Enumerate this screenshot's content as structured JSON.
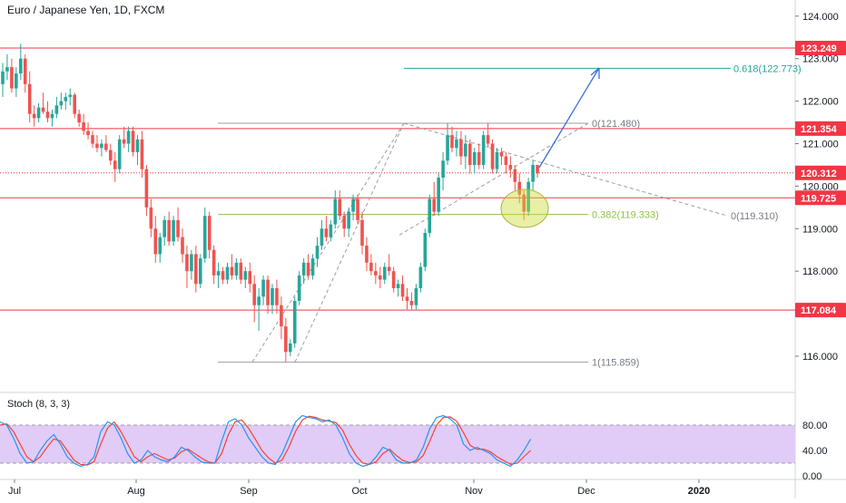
{
  "title": "Euro / Japanese Yen, 1D, FXCM",
  "stoch_label": "Stoch (8, 3, 3)",
  "colors": {
    "up": "#26a69a",
    "down": "#ef5350",
    "level_line": "#f23645",
    "fib_teal": "#26a69a",
    "fib_green": "#8bc34a",
    "arrow": "#3a6fd8",
    "stoch_k": "#2196f3",
    "stoch_d": "#f44336",
    "stoch_band": "#e1cbf7"
  },
  "price_axis": {
    "ticks": [
      "124.000",
      "123.000",
      "122.000",
      "121.000",
      "120.000",
      "119.000",
      "118.000",
      "117.000",
      "116.000"
    ]
  },
  "time_axis": {
    "ticks": [
      "Jul",
      "Aug",
      "Sep",
      "Oct",
      "Nov",
      "Dec",
      "2020"
    ]
  },
  "stoch_axis": {
    "ticks": [
      "80.00",
      "40.00",
      "0.00"
    ]
  },
  "price_tags": [
    {
      "label": "123.249",
      "price": 123.249,
      "style": "level"
    },
    {
      "label": "121.354",
      "price": 121.354,
      "style": "level"
    },
    {
      "label": "120.312",
      "price": 120.312,
      "style": "current"
    },
    {
      "label": "119.725",
      "price": 119.725,
      "style": "level"
    },
    {
      "label": "117.084",
      "price": 117.084,
      "style": "level"
    }
  ],
  "fib_labels": {
    "f0": "0(121.480)",
    "f1": "1(115.859)",
    "f0382": "0.382(119.333)",
    "f0618": "0.618(122.773)",
    "f0b": "0(119.310)"
  },
  "chart_data": {
    "type": "candlestick",
    "title": "Euro / Japanese Yen, 1D, FXCM",
    "price_range": [
      115.5,
      124.2
    ],
    "candles_ohlc": [
      [
        122.4,
        122.9,
        122.1,
        122.7
      ],
      [
        122.7,
        123.1,
        122.5,
        122.8
      ],
      [
        122.8,
        123.0,
        122.2,
        122.3
      ],
      [
        122.3,
        122.8,
        122.1,
        122.65
      ],
      [
        122.65,
        123.35,
        122.5,
        123.0
      ],
      [
        123.0,
        123.1,
        122.2,
        122.4
      ],
      [
        122.4,
        122.7,
        121.5,
        121.7
      ],
      [
        121.7,
        121.9,
        121.4,
        121.6
      ],
      [
        121.6,
        121.95,
        121.5,
        121.85
      ],
      [
        121.85,
        122.2,
        121.7,
        121.75
      ],
      [
        121.75,
        122.0,
        121.5,
        121.6
      ],
      [
        121.6,
        121.8,
        121.4,
        121.7
      ],
      [
        121.7,
        122.1,
        121.6,
        121.9
      ],
      [
        121.9,
        122.2,
        121.8,
        122.0
      ],
      [
        122.0,
        122.2,
        121.8,
        122.1
      ],
      [
        122.1,
        122.3,
        121.9,
        122.15
      ],
      [
        122.15,
        122.2,
        121.6,
        121.7
      ],
      [
        121.7,
        121.8,
        121.4,
        121.5
      ],
      [
        121.5,
        121.7,
        121.2,
        121.3
      ],
      [
        121.3,
        121.5,
        121.1,
        121.2
      ],
      [
        121.2,
        121.3,
        120.9,
        121.0
      ],
      [
        121.0,
        121.2,
        120.8,
        120.9
      ],
      [
        120.9,
        121.1,
        120.7,
        121.0
      ],
      [
        121.0,
        121.2,
        120.8,
        120.85
      ],
      [
        120.85,
        121.0,
        120.5,
        120.6
      ],
      [
        120.6,
        120.8,
        120.1,
        120.4
      ],
      [
        120.4,
        121.2,
        120.3,
        121.1
      ],
      [
        121.1,
        121.4,
        120.9,
        121.0
      ],
      [
        121.0,
        121.4,
        120.8,
        121.3
      ],
      [
        121.3,
        121.4,
        120.7,
        120.8
      ],
      [
        120.8,
        121.2,
        120.5,
        121.1
      ],
      [
        121.1,
        121.3,
        120.2,
        120.4
      ],
      [
        120.4,
        120.5,
        119.3,
        119.5
      ],
      [
        119.5,
        119.7,
        118.8,
        119.0
      ],
      [
        119.0,
        119.3,
        118.2,
        118.4
      ],
      [
        118.4,
        118.9,
        118.2,
        118.8
      ],
      [
        118.8,
        119.3,
        118.6,
        119.2
      ],
      [
        119.2,
        119.4,
        118.6,
        118.7
      ],
      [
        118.7,
        119.3,
        118.6,
        119.2
      ],
      [
        119.2,
        119.5,
        118.7,
        118.8
      ],
      [
        118.8,
        119.0,
        118.2,
        118.4
      ],
      [
        118.4,
        118.6,
        117.6,
        118.0
      ],
      [
        118.0,
        118.5,
        117.8,
        118.4
      ],
      [
        118.4,
        118.6,
        117.5,
        117.7
      ],
      [
        117.7,
        118.4,
        117.6,
        118.3
      ],
      [
        118.3,
        119.5,
        118.2,
        119.3
      ],
      [
        119.3,
        119.4,
        118.3,
        118.5
      ],
      [
        118.5,
        118.6,
        117.7,
        117.9
      ],
      [
        117.9,
        118.2,
        117.6,
        118.0
      ],
      [
        118.0,
        118.1,
        117.7,
        117.8
      ],
      [
        117.8,
        118.2,
        117.7,
        118.1
      ],
      [
        118.1,
        118.4,
        117.8,
        117.9
      ],
      [
        117.9,
        118.3,
        117.8,
        118.2
      ],
      [
        118.2,
        118.3,
        117.7,
        117.8
      ],
      [
        117.8,
        118.1,
        117.6,
        118.0
      ],
      [
        118.0,
        118.2,
        117.5,
        117.7
      ],
      [
        117.7,
        117.9,
        116.8,
        117.2
      ],
      [
        117.2,
        117.6,
        116.6,
        117.4
      ],
      [
        117.4,
        117.9,
        117.2,
        117.8
      ],
      [
        117.8,
        117.9,
        117.0,
        117.2
      ],
      [
        117.2,
        117.7,
        117.0,
        117.6
      ],
      [
        117.6,
        117.8,
        117.0,
        117.2
      ],
      [
        117.2,
        117.4,
        116.4,
        116.7
      ],
      [
        116.7,
        116.9,
        115.86,
        116.1
      ],
      [
        116.1,
        116.4,
        116.0,
        116.3
      ],
      [
        116.3,
        117.4,
        116.2,
        117.3
      ],
      [
        117.3,
        118.0,
        117.2,
        117.9
      ],
      [
        117.9,
        118.3,
        117.7,
        118.2
      ],
      [
        118.2,
        118.4,
        117.8,
        117.9
      ],
      [
        117.9,
        118.4,
        117.8,
        118.3
      ],
      [
        118.3,
        118.8,
        118.1,
        118.6
      ],
      [
        118.6,
        119.2,
        118.5,
        119.0
      ],
      [
        119.0,
        119.3,
        118.7,
        118.8
      ],
      [
        118.8,
        119.2,
        118.7,
        119.1
      ],
      [
        119.1,
        119.9,
        119.0,
        119.7
      ],
      [
        119.7,
        119.9,
        119.2,
        119.3
      ],
      [
        119.3,
        119.4,
        118.8,
        119.0
      ],
      [
        119.0,
        119.5,
        118.8,
        119.4
      ],
      [
        119.4,
        119.8,
        119.2,
        119.7
      ],
      [
        119.7,
        119.8,
        119.1,
        119.2
      ],
      [
        119.2,
        119.4,
        118.4,
        118.6
      ],
      [
        118.6,
        118.8,
        118.0,
        118.2
      ],
      [
        118.2,
        118.4,
        117.9,
        118.0
      ],
      [
        118.0,
        118.2,
        117.7,
        117.9
      ],
      [
        117.9,
        118.1,
        117.6,
        117.8
      ],
      [
        117.8,
        118.2,
        117.7,
        118.1
      ],
      [
        118.1,
        118.4,
        117.9,
        118.0
      ],
      [
        118.0,
        118.1,
        117.5,
        117.6
      ],
      [
        117.6,
        117.8,
        117.4,
        117.7
      ],
      [
        117.7,
        117.9,
        117.3,
        117.4
      ],
      [
        117.4,
        117.6,
        117.1,
        117.3
      ],
      [
        117.3,
        117.5,
        117.1,
        117.2
      ],
      [
        117.2,
        117.7,
        117.1,
        117.6
      ],
      [
        117.6,
        118.2,
        117.5,
        118.1
      ],
      [
        118.1,
        119.0,
        118.0,
        118.9
      ],
      [
        118.9,
        119.8,
        118.8,
        119.7
      ],
      [
        119.7,
        120.1,
        119.3,
        119.4
      ],
      [
        119.4,
        120.3,
        119.3,
        120.2
      ],
      [
        120.2,
        120.8,
        119.9,
        120.6
      ],
      [
        120.6,
        121.48,
        120.5,
        121.2
      ],
      [
        121.2,
        121.4,
        120.8,
        120.9
      ],
      [
        120.9,
        121.3,
        120.7,
        121.1
      ],
      [
        121.1,
        121.3,
        120.5,
        120.7
      ],
      [
        120.7,
        121.2,
        120.4,
        121.0
      ],
      [
        121.0,
        121.1,
        120.3,
        120.5
      ],
      [
        120.5,
        120.9,
        120.3,
        120.8
      ],
      [
        120.8,
        121.0,
        120.4,
        120.5
      ],
      [
        120.5,
        121.3,
        120.4,
        121.2
      ],
      [
        121.2,
        121.48,
        120.9,
        121.0
      ],
      [
        121.0,
        121.1,
        120.3,
        120.4
      ],
      [
        120.4,
        120.9,
        120.3,
        120.8
      ],
      [
        120.8,
        120.9,
        120.5,
        120.7
      ],
      [
        120.7,
        120.8,
        120.3,
        120.5
      ],
      [
        120.5,
        120.7,
        120.2,
        120.4
      ],
      [
        120.4,
        120.5,
        119.9,
        120.1
      ],
      [
        120.1,
        120.3,
        119.6,
        119.8
      ],
      [
        119.8,
        119.9,
        119.2,
        119.4
      ],
      [
        119.4,
        120.2,
        119.3,
        120.1
      ],
      [
        120.1,
        120.6,
        119.9,
        120.5
      ],
      [
        120.5,
        120.5,
        120.2,
        120.3
      ]
    ],
    "levels": [
      123.249,
      121.354,
      119.725,
      117.084
    ],
    "current_price": 120.312,
    "fib_0": 121.48,
    "fib_1": 115.859,
    "fib_0382": 119.333,
    "fib_0618": 122.773,
    "fib_0_b": 119.31,
    "stoch": {
      "range": [
        0,
        100
      ],
      "upper": 80,
      "lower": 20,
      "k": [
        85,
        80,
        60,
        35,
        20,
        22,
        40,
        55,
        65,
        50,
        30,
        20,
        15,
        18,
        30,
        70,
        85,
        80,
        60,
        35,
        20,
        25,
        40,
        30,
        25,
        22,
        30,
        45,
        40,
        30,
        22,
        20,
        20,
        55,
        85,
        90,
        80,
        60,
        45,
        30,
        20,
        18,
        35,
        60,
        85,
        95,
        92,
        90,
        85,
        88,
        80,
        60,
        35,
        20,
        15,
        18,
        30,
        45,
        40,
        25,
        20,
        20,
        25,
        45,
        75,
        92,
        95,
        90,
        80,
        50,
        40,
        45,
        40,
        35,
        25,
        20,
        15,
        25,
        40,
        58
      ],
      "d": [
        80,
        82,
        70,
        50,
        30,
        22,
        30,
        45,
        58,
        55,
        40,
        25,
        18,
        17,
        22,
        50,
        75,
        85,
        70,
        50,
        30,
        22,
        30,
        35,
        30,
        25,
        28,
        38,
        42,
        35,
        28,
        22,
        20,
        35,
        65,
        85,
        88,
        75,
        58,
        40,
        28,
        20,
        25,
        45,
        70,
        88,
        94,
        92,
        88,
        86,
        84,
        72,
        50,
        32,
        20,
        18,
        22,
        35,
        42,
        32,
        24,
        21,
        22,
        32,
        55,
        80,
        92,
        93,
        86,
        68,
        48,
        42,
        42,
        38,
        30,
        24,
        18,
        20,
        30,
        40
      ]
    },
    "time_ticks": [
      "Jul",
      "Aug",
      "Sep",
      "Oct",
      "Nov",
      "Dec",
      "2020"
    ]
  }
}
